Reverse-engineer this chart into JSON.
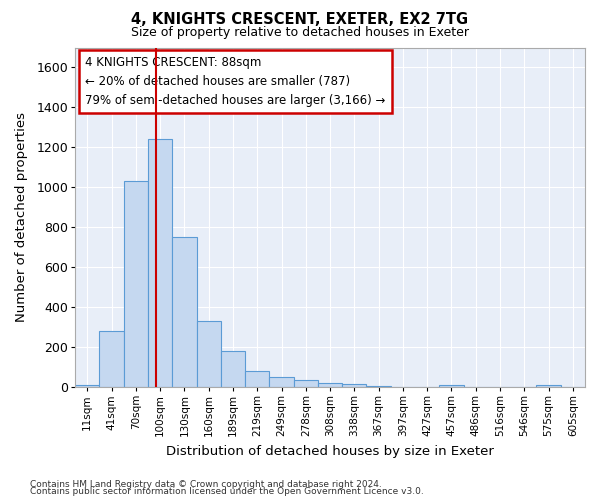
{
  "title": "4, KNIGHTS CRESCENT, EXETER, EX2 7TG",
  "subtitle": "Size of property relative to detached houses in Exeter",
  "xlabel": "Distribution of detached houses by size in Exeter",
  "ylabel": "Number of detached properties",
  "bar_color": "#c5d8f0",
  "bar_edge_color": "#5b9bd5",
  "background_color": "#e8eef8",
  "grid_color": "#ffffff",
  "fig_bg_color": "#ffffff",
  "bins": [
    "11sqm",
    "41sqm",
    "70sqm",
    "100sqm",
    "130sqm",
    "160sqm",
    "189sqm",
    "219sqm",
    "249sqm",
    "278sqm",
    "308sqm",
    "338sqm",
    "367sqm",
    "397sqm",
    "427sqm",
    "457sqm",
    "486sqm",
    "516sqm",
    "546sqm",
    "575sqm",
    "605sqm"
  ],
  "values": [
    10,
    280,
    1030,
    1240,
    750,
    330,
    180,
    80,
    50,
    35,
    20,
    15,
    5,
    0,
    0,
    10,
    0,
    0,
    0,
    10,
    0
  ],
  "ylim": [
    0,
    1700
  ],
  "yticks": [
    0,
    200,
    400,
    600,
    800,
    1000,
    1200,
    1400,
    1600
  ],
  "property_bin_index": 2.85,
  "annotation_line1": "4 KNIGHTS CRESCENT: 88sqm",
  "annotation_line2": "← 20% of detached houses are smaller (787)",
  "annotation_line3": "79% of semi-detached houses are larger (3,166) →",
  "annotation_box_color": "#ffffff",
  "annotation_box_edge": "#cc0000",
  "red_line_color": "#cc0000",
  "footer_line1": "Contains HM Land Registry data © Crown copyright and database right 2024.",
  "footer_line2": "Contains public sector information licensed under the Open Government Licence v3.0."
}
